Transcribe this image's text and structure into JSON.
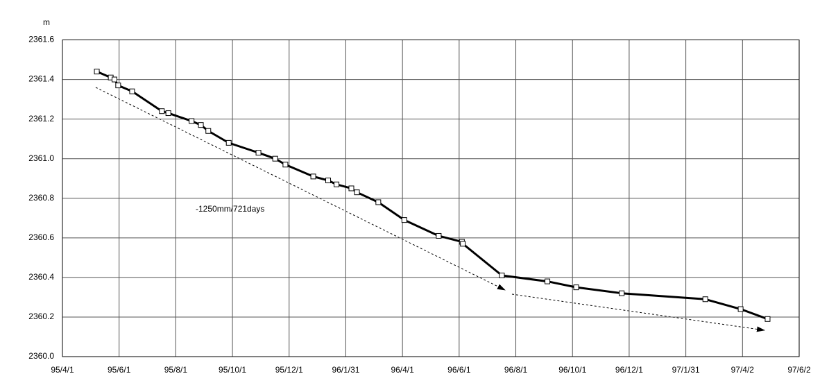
{
  "chart_data": {
    "type": "line",
    "y_unit": "m",
    "annotation": "-1250mm/721days",
    "x": [
      "1995-05-08",
      "1995-05-23",
      "1995-05-27",
      "1995-05-31",
      "1995-06-15",
      "1995-07-17",
      "1995-07-24",
      "1995-08-18",
      "1995-08-28",
      "1995-09-05",
      "1995-09-27",
      "1995-10-29",
      "1995-11-16",
      "1995-11-27",
      "1995-12-27",
      "1996-01-12",
      "1996-01-21",
      "1996-02-06",
      "1996-02-12",
      "1996-03-06",
      "1996-04-03",
      "1996-05-10",
      "1996-06-04",
      "1996-06-05",
      "1996-07-17",
      "1996-09-04",
      "1996-10-05",
      "1996-11-23",
      "1997-02-21",
      "1997-03-31",
      "1997-04-29"
    ],
    "series": [
      {
        "color": "#000000",
        "values": [
          2361.44,
          2361.41,
          2361.4,
          2361.37,
          2361.34,
          2361.24,
          2361.23,
          2361.19,
          2361.17,
          2361.14,
          2361.08,
          2361.03,
          2361.0,
          2360.97,
          2360.91,
          2360.89,
          2360.87,
          2360.85,
          2360.83,
          2360.78,
          2360.69,
          2360.61,
          2360.58,
          2360.57,
          2360.41,
          2360.38,
          2360.35,
          2360.32,
          2360.29,
          2360.24,
          2360.19
        ]
      }
    ],
    "xlim": [
      "1995-04-01",
      "1997-06-02"
    ],
    "xticks": [
      {
        "value": "1995-04-01",
        "label": "95/4/1"
      },
      {
        "value": "1995-06-01",
        "label": "95/6/1"
      },
      {
        "value": "1995-08-01",
        "label": "95/8/1"
      },
      {
        "value": "1995-10-01",
        "label": "95/10/1"
      },
      {
        "value": "1995-12-01",
        "label": "95/12/1"
      },
      {
        "value": "1996-01-31",
        "label": "96/1/31"
      },
      {
        "value": "1996-04-01",
        "label": "96/4/1"
      },
      {
        "value": "1996-06-01",
        "label": "96/6/1"
      },
      {
        "value": "1996-08-01",
        "label": "96/8/1"
      },
      {
        "value": "1996-10-01",
        "label": "96/10/1"
      },
      {
        "value": "1996-12-01",
        "label": "96/12/1"
      },
      {
        "value": "1997-01-31",
        "label": "97/1/31"
      },
      {
        "value": "1997-04-02",
        "label": "97/4/2"
      },
      {
        "value": "1997-06-02",
        "label": "97/6/2"
      }
    ],
    "ylim": [
      2360.0,
      2361.6
    ],
    "yticks": [
      {
        "value": 2360,
        "label": "2360.0"
      },
      2360.2,
      2360.4,
      2360.6,
      2360.8,
      {
        "value": 2361,
        "label": "2361.0"
      },
      2361.2,
      2361.4,
      2361.6
    ],
    "grid": true
  }
}
